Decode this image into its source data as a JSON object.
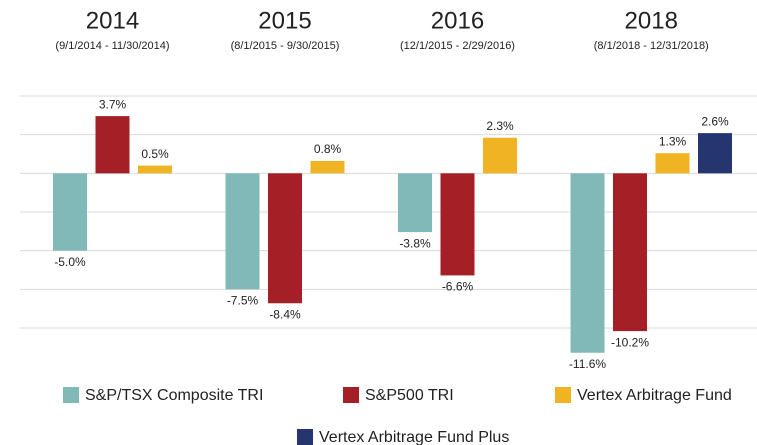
{
  "chart_data": {
    "type": "bar",
    "categories": [
      "2014",
      "2015",
      "2016",
      "2018"
    ],
    "category_subtitles": [
      "(9/1/2014 - 11/30/2014)",
      "(8/1/2015 - 9/30/2015)",
      "(12/1/2015 - 2/29/2016)",
      "(8/1/2018 - 12/31/2018)"
    ],
    "series": [
      {
        "name": "S&P/TSX Composite TRI",
        "color": "#80b9b8",
        "values": [
          -5.0,
          -7.5,
          -3.8,
          -11.6
        ],
        "value_labels": [
          "-5.0%",
          "-7.5%",
          "-3.8%",
          "-11.6%"
        ]
      },
      {
        "name": "S&P500 TRI",
        "color": "#a51f26",
        "values": [
          3.7,
          -8.4,
          -6.6,
          -10.2
        ],
        "value_labels": [
          "3.7%",
          "-8.4%",
          "-6.6%",
          "-10.2%"
        ]
      },
      {
        "name": "Vertex Arbitrage Fund",
        "color": "#f0b323",
        "values": [
          0.5,
          0.8,
          2.3,
          1.3
        ],
        "value_labels": [
          "0.5%",
          "0.8%",
          "2.3%",
          "1.3%"
        ]
      },
      {
        "name": "Vertex Arbitrage Fund Plus",
        "color": "#253570",
        "values": [
          null,
          null,
          null,
          2.6
        ],
        "value_labels": [
          null,
          null,
          null,
          "2.6%"
        ]
      }
    ],
    "ylim": [
      -10,
      5
    ],
    "yticks": [
      -10,
      -7.5,
      -5,
      -2.5,
      0,
      2.5,
      5
    ],
    "grid": true
  }
}
